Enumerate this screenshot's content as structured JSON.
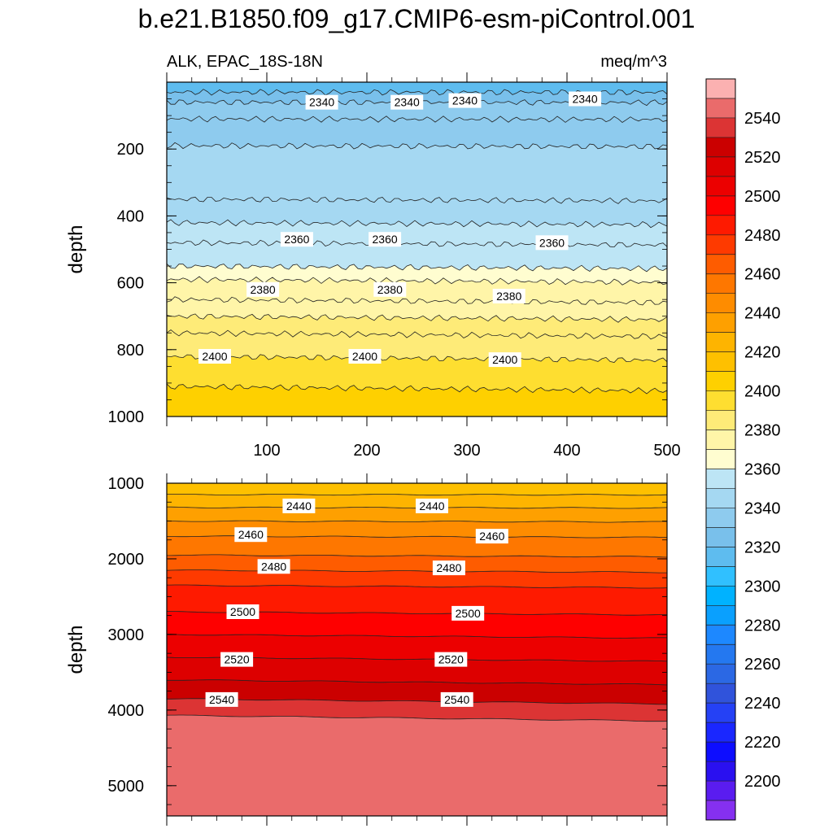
{
  "title": "b.e21.B1850.f09_g17.CMIP6-esm-piControl.001",
  "subtitle_left": "ALK, EPAC_18S-18N",
  "subtitle_right": "meq/m^3",
  "chart_data": [
    {
      "type": "heatmap",
      "panel": "upper",
      "ylabel": "depth",
      "xlim": [
        0,
        500
      ],
      "ylim": [
        0,
        1000
      ],
      "y_reversed": true,
      "x_ticks": [
        100,
        200,
        300,
        400,
        500
      ],
      "y_ticks": [
        200,
        400,
        600,
        800,
        1000
      ],
      "contours": [
        {
          "level": 2330,
          "depth": 30
        },
        {
          "level": 2340,
          "depth": 60
        },
        {
          "level": 2340,
          "depth": 110
        },
        {
          "level": 2345,
          "depth": 190
        },
        {
          "level": 2350,
          "depth": 350
        },
        {
          "level": 2355,
          "depth": 420
        },
        {
          "level": 2360,
          "depth": 480
        },
        {
          "level": 2365,
          "depth": 550
        },
        {
          "level": 2375,
          "depth": 590
        },
        {
          "level": 2380,
          "depth": 650
        },
        {
          "level": 2385,
          "depth": 700
        },
        {
          "level": 2390,
          "depth": 750
        },
        {
          "level": 2400,
          "depth": 820
        },
        {
          "level": 2405,
          "depth": 910
        }
      ],
      "contour_labels": [
        {
          "text": "2340",
          "x": 155,
          "depth": 60
        },
        {
          "text": "2340",
          "x": 240,
          "depth": 60
        },
        {
          "text": "2340",
          "x": 298,
          "depth": 55
        },
        {
          "text": "2340",
          "x": 418,
          "depth": 50
        },
        {
          "text": "2360",
          "x": 130,
          "depth": 470
        },
        {
          "text": "2360",
          "x": 218,
          "depth": 470
        },
        {
          "text": "2360",
          "x": 385,
          "depth": 480
        },
        {
          "text": "2380",
          "x": 96,
          "depth": 620
        },
        {
          "text": "2380",
          "x": 223,
          "depth": 620
        },
        {
          "text": "2380",
          "x": 342,
          "depth": 640
        },
        {
          "text": "2400",
          "x": 48,
          "depth": 820
        },
        {
          "text": "2400",
          "x": 198,
          "depth": 820
        },
        {
          "text": "2400",
          "x": 338,
          "depth": 830
        }
      ]
    },
    {
      "type": "heatmap",
      "panel": "lower",
      "ylabel": "depth",
      "xlim": [
        0,
        500
      ],
      "ylim": [
        1000,
        5400
      ],
      "y_reversed": true,
      "y_ticks": [
        1000,
        2000,
        3000,
        4000,
        5000
      ],
      "contours": [
        {
          "level": 2430,
          "depth": 1150
        },
        {
          "level": 2440,
          "depth": 1320
        },
        {
          "level": 2450,
          "depth": 1500
        },
        {
          "level": 2460,
          "depth": 1700
        },
        {
          "level": 2470,
          "depth": 1950
        },
        {
          "level": 2480,
          "depth": 2150
        },
        {
          "level": 2490,
          "depth": 2350
        },
        {
          "level": 2500,
          "depth": 2700
        },
        {
          "level": 2510,
          "depth": 3000
        },
        {
          "level": 2520,
          "depth": 3300
        },
        {
          "level": 2530,
          "depth": 3600
        },
        {
          "level": 2540,
          "depth": 3850
        },
        {
          "level": 2550,
          "depth": 4070
        }
      ],
      "contour_labels": [
        {
          "text": "2440",
          "x": 132,
          "depth": 1300
        },
        {
          "text": "2440",
          "x": 265,
          "depth": 1300
        },
        {
          "text": "2460",
          "x": 84,
          "depth": 1680
        },
        {
          "text": "2460",
          "x": 325,
          "depth": 1700
        },
        {
          "text": "2480",
          "x": 107,
          "depth": 2100
        },
        {
          "text": "2480",
          "x": 282,
          "depth": 2120
        },
        {
          "text": "2500",
          "x": 76,
          "depth": 2700
        },
        {
          "text": "2500",
          "x": 301,
          "depth": 2720
        },
        {
          "text": "2520",
          "x": 70,
          "depth": 3330
        },
        {
          "text": "2520",
          "x": 284,
          "depth": 3330
        },
        {
          "text": "2540",
          "x": 55,
          "depth": 3860
        },
        {
          "text": "2540",
          "x": 290,
          "depth": 3860
        }
      ]
    }
  ],
  "colorbar": {
    "labels": [
      "2540",
      "2520",
      "2500",
      "2480",
      "2460",
      "2440",
      "2420",
      "2400",
      "2380",
      "2360",
      "2340",
      "2320",
      "2300",
      "2280",
      "2260",
      "2240",
      "2220",
      "2200"
    ],
    "colors": [
      "#fbb1b1",
      "#ea6b6b",
      "#dc3434",
      "#cb0000",
      "#dd0000",
      "#ec0000",
      "#fe0000",
      "#fe1a00",
      "#fe3a00",
      "#fe5c00",
      "#fe7700",
      "#fe8c00",
      "#fea000",
      "#feb400",
      "#fec000",
      "#fed000",
      "#fede30",
      "#feeb78",
      "#fff5a8",
      "#fffdd0",
      "#bde5f5",
      "#a5d8f2",
      "#8ecbee",
      "#79c0eb",
      "#5ebcef",
      "#30c0ff",
      "#00b2ff",
      "#0aa0fe",
      "#1d88ff",
      "#2478f0",
      "#2b68e4",
      "#3053db",
      "#2541f5",
      "#1a27ff",
      "#0d0dff",
      "#2a10f0",
      "#5a1cf0",
      "#8530f0"
    ]
  }
}
